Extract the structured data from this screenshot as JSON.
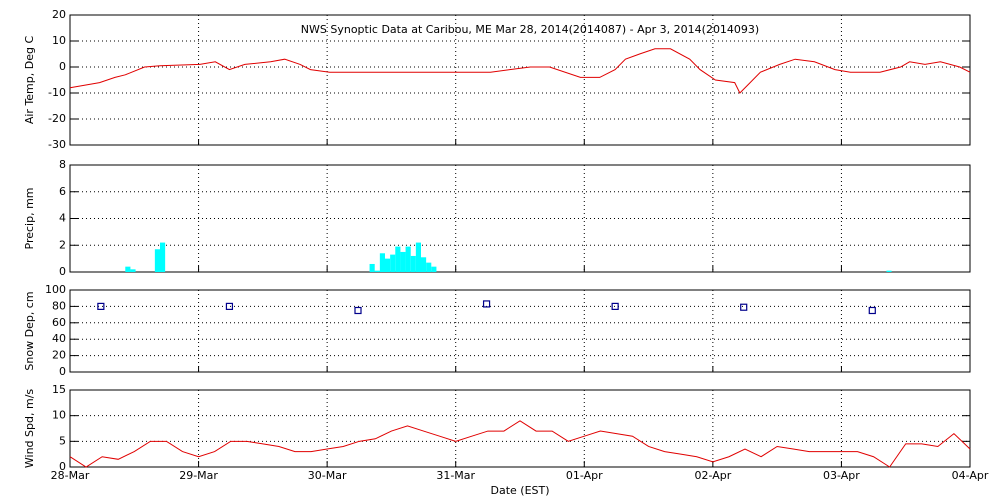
{
  "chart_data": [
    {
      "type": "line",
      "title": "NWS Synoptic Data at Caribou, ME   Mar 28, 2014(2014087) - Apr  3, 2014(2014093)",
      "ylabel": "Air Temp, Deg C",
      "xlim": [
        0,
        7
      ],
      "ylim": [
        -30,
        20
      ],
      "yticks": [
        -30,
        -20,
        -10,
        0,
        10,
        20
      ],
      "grid": true,
      "series": [
        {
          "color": "#e00000",
          "x": [
            0,
            0.23,
            0.35,
            0.43,
            0.58,
            0.7,
            1.01,
            1.13,
            1.24,
            1.36,
            1.56,
            1.67,
            1.79,
            1.87,
            2.02,
            2.57,
            3.03,
            3.27,
            3.42,
            3.58,
            3.73,
            3.97,
            4.12,
            4.24,
            4.32,
            4.43,
            4.55,
            4.67,
            4.82,
            4.9,
            5.02,
            5.17,
            5.21,
            5.29,
            5.37,
            5.52,
            5.64,
            5.79,
            5.95,
            6.07,
            6.3,
            6.46,
            6.53,
            6.65,
            6.77,
            6.92,
            7
          ],
          "values": [
            -8,
            -6,
            -4,
            -3,
            0,
            0.5,
            1,
            2,
            -1,
            1,
            2,
            3,
            1,
            -1,
            -2,
            -2,
            -2,
            -2,
            -1,
            0,
            0,
            -4,
            -4,
            -1,
            3,
            5,
            7,
            7,
            3,
            -1,
            -5,
            -6,
            -10,
            -6,
            -2,
            1,
            3,
            2,
            -1,
            -2,
            -2,
            0,
            2,
            1,
            2,
            0,
            -2
          ]
        }
      ]
    },
    {
      "type": "bar",
      "ylabel": "Precip, mm",
      "xlim": [
        0,
        7
      ],
      "ylim": [
        0,
        8
      ],
      "yticks": [
        0,
        2,
        4,
        6,
        8
      ],
      "grid": true,
      "bar_width": 0.04,
      "series": [
        {
          "color": "#00ffff",
          "x": [
            0.43,
            0.47,
            0.66,
            0.7,
            2.33,
            2.37,
            2.41,
            2.45,
            2.49,
            2.53,
            2.57,
            2.61,
            2.65,
            2.69,
            2.73,
            2.77,
            2.81,
            6.35
          ],
          "values": [
            0.4,
            0.2,
            1.7,
            2.2,
            0.6,
            0.1,
            1.4,
            1.0,
            1.3,
            1.9,
            1.5,
            1.9,
            1.2,
            2.2,
            1.1,
            0.7,
            0.4,
            0.1
          ]
        }
      ]
    },
    {
      "type": "scatter",
      "ylabel": "Snow Dep, cm",
      "xlim": [
        0,
        7
      ],
      "ylim": [
        0,
        100
      ],
      "yticks": [
        0,
        20,
        40,
        60,
        80,
        100
      ],
      "grid": true,
      "series": [
        {
          "color": "#00008b",
          "x": [
            0.24,
            1.24,
            2.24,
            3.24,
            4.24,
            5.24,
            6.24
          ],
          "values": [
            80,
            80,
            75,
            83,
            80,
            79,
            75
          ]
        }
      ]
    },
    {
      "type": "line",
      "ylabel": "Wind Spd, m/s",
      "xlabel": "Date (EST)",
      "xlim": [
        0,
        7
      ],
      "ylim": [
        0,
        15
      ],
      "yticks": [
        0,
        5,
        10,
        15
      ],
      "grid": true,
      "xticks": [
        {
          "value": 0,
          "label": "28-Mar"
        },
        {
          "value": 1,
          "label": "29-Mar"
        },
        {
          "value": 2,
          "label": "30-Mar"
        },
        {
          "value": 3,
          "label": "31-Mar"
        },
        {
          "value": 4,
          "label": "01-Apr"
        },
        {
          "value": 5,
          "label": "02-Apr"
        },
        {
          "value": 6,
          "label": "03-Apr"
        },
        {
          "value": 7,
          "label": "04-Apr"
        }
      ],
      "series": [
        {
          "color": "#e00000",
          "x": [
            0,
            0.125,
            0.25,
            0.375,
            0.5,
            0.625,
            0.75,
            0.875,
            1,
            1.125,
            1.25,
            1.375,
            1.5,
            1.625,
            1.75,
            1.875,
            2,
            2.125,
            2.25,
            2.375,
            2.5,
            2.625,
            2.75,
            2.875,
            3,
            3.125,
            3.25,
            3.375,
            3.5,
            3.625,
            3.75,
            3.875,
            4,
            4.125,
            4.25,
            4.375,
            4.5,
            4.625,
            4.75,
            4.875,
            5,
            5.125,
            5.25,
            5.375,
            5.5,
            5.625,
            5.75,
            5.875,
            6,
            6.125,
            6.25,
            6.375,
            6.5,
            6.625,
            6.75,
            6.875,
            7
          ],
          "values": [
            2,
            0,
            2,
            1.5,
            3,
            5,
            5,
            3,
            2,
            3,
            5,
            5,
            4.5,
            4,
            3,
            3,
            3.5,
            4,
            5,
            5.5,
            7,
            8,
            7,
            6,
            5,
            6,
            7,
            7,
            9,
            7,
            7,
            5,
            6,
            7,
            6.5,
            6,
            4,
            3,
            2.5,
            2,
            1,
            2,
            3.5,
            2,
            4,
            3.5,
            3,
            3,
            3,
            3,
            2,
            0,
            4.5,
            4.5,
            4,
            6.5,
            3.5
          ]
        }
      ]
    }
  ]
}
